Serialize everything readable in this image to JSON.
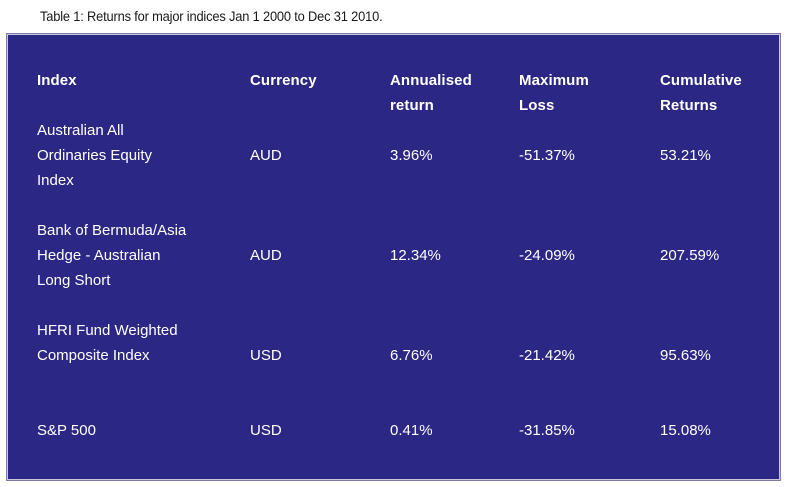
{
  "caption": "Table 1: Returns for major indices Jan 1 2000 to Dec 31 2010.",
  "colors": {
    "panel_background": "#2b2784",
    "text": "#ffffff",
    "caption_text": "#1a1a1a"
  },
  "table": {
    "headers": {
      "index": [
        "Index"
      ],
      "currency": [
        "Currency"
      ],
      "annualised": [
        "Annualised",
        "return"
      ],
      "max_loss": [
        "Maximum",
        "Loss"
      ],
      "cumulative": [
        "Cumulative",
        "Returns"
      ]
    },
    "rows": [
      {
        "index": [
          "Australian All",
          "Ordinaries Equity",
          "Index"
        ],
        "currency": "AUD",
        "annualised": "3.96%",
        "max_loss": "-51.37%",
        "cumulative": "53.21%"
      },
      {
        "index": [
          "Bank of Bermuda/Asia",
          "Hedge - Australian",
          "Long Short"
        ],
        "currency": "AUD",
        "annualised": "12.34%",
        "max_loss": "-24.09%",
        "cumulative": "207.59%"
      },
      {
        "index": [
          "HFRI Fund Weighted",
          "Composite Index"
        ],
        "currency": "USD",
        "annualised": "6.76%",
        "max_loss": "-21.42%",
        "cumulative": "95.63%"
      },
      {
        "index": [
          "S&P 500"
        ],
        "currency": "USD",
        "annualised": "0.41%",
        "max_loss": "-31.85%",
        "cumulative": "15.08%"
      }
    ]
  }
}
